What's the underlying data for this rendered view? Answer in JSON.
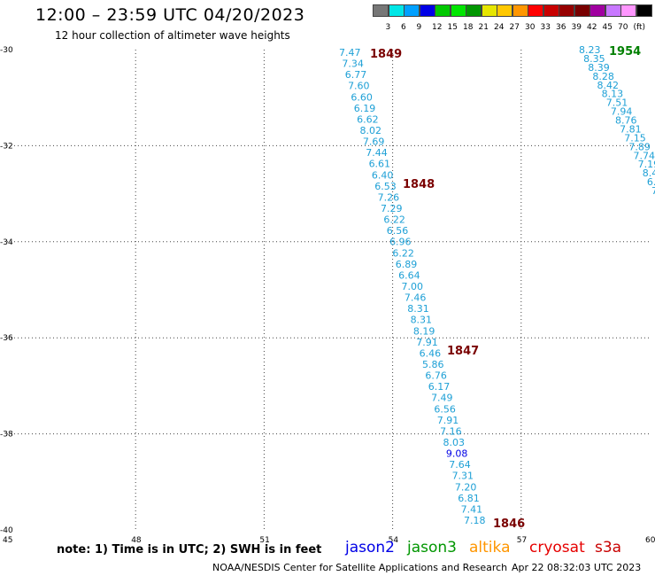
{
  "header": {
    "title": "12:00 – 23:59 UTC 04/20/2023",
    "subtitle": "12 hour collection of altimeter wave heights"
  },
  "colorbar": {
    "colors": [
      "#777777",
      "#00e6e6",
      "#00a0ff",
      "#0000e6",
      "#00c800",
      "#00e600",
      "#009600",
      "#e6e600",
      "#ffc800",
      "#ff9600",
      "#ff0000",
      "#c80000",
      "#960000",
      "#780000",
      "#a000a0",
      "#c878ff",
      "#ff96ff",
      "#000000"
    ],
    "labels": [
      "3",
      "6",
      "9",
      "12",
      "15",
      "18",
      "21",
      "24",
      "27",
      "30",
      "33",
      "36",
      "39",
      "42",
      "45",
      "70",
      "(ft)"
    ]
  },
  "axes": {
    "y_labels": [
      "-30",
      "-32",
      "-34",
      "-36",
      "-38",
      "-40"
    ],
    "x_labels": [
      "45",
      "48",
      "51",
      "54",
      "57",
      "60"
    ]
  },
  "chart_data": {
    "type": "scatter",
    "x_range": [
      45,
      60
    ],
    "y_range": [
      -40,
      -30
    ],
    "grid": true,
    "passes": [
      {
        "label": "1849",
        "color": "#7a0000"
      },
      {
        "label": "1848",
        "color": "#7a0000"
      },
      {
        "label": "1847",
        "color": "#7a0000"
      },
      {
        "label": "1846",
        "color": "#7a0000"
      },
      {
        "label": "1954",
        "color": "#008000"
      }
    ],
    "series": [
      {
        "satellite": "jason2",
        "track": "1849-1846",
        "values": [
          "7.47",
          "7.34",
          "6.77",
          "7.60",
          "6.60",
          "6.19",
          "6.62",
          "8.02",
          "7.69",
          "7.44",
          "6.61",
          "6.40",
          "6.53",
          "7.26",
          "7.29",
          "6.22",
          "6.56",
          "6.96",
          "6.22",
          "6.89",
          "6.64",
          "7.00",
          "7.46",
          "8.31",
          "8.31",
          "8.19",
          "7.91",
          "6.46",
          "5.86",
          "6.76",
          "6.17",
          "7.49",
          "6.56",
          "7.91",
          "7.16",
          "8.03",
          "9.08",
          "7.64",
          "7.31",
          "7.20",
          "6.81",
          "7.41",
          "7.18"
        ]
      },
      {
        "satellite": "jason3",
        "track": "1954",
        "values": [
          "8.23",
          "8.35",
          "8.39",
          "8.28",
          "8.42",
          "8.13",
          "7.51",
          "7.94",
          "8.76",
          "7.81",
          "7.15",
          "7.89",
          "7.74",
          "7.19",
          "8.4",
          "6.",
          "7"
        ]
      }
    ]
  },
  "legend": {
    "note": "note: 1) Time is in UTC; 2) SWH is in feet",
    "satellites": [
      {
        "name": "jason2",
        "color": "#0000e6"
      },
      {
        "name": "jason3",
        "color": "#009600"
      },
      {
        "name": "altika",
        "color": "#ff9600"
      },
      {
        "name": "cryosat",
        "color": "#e60000"
      },
      {
        "name": "s3a",
        "color": "#c80000"
      }
    ]
  },
  "footer": {
    "credit": "NOAA/NESDIS Center for Satellite Applications and Research",
    "timestamp": "Apr 22 08:32:03 UTC 2023"
  }
}
